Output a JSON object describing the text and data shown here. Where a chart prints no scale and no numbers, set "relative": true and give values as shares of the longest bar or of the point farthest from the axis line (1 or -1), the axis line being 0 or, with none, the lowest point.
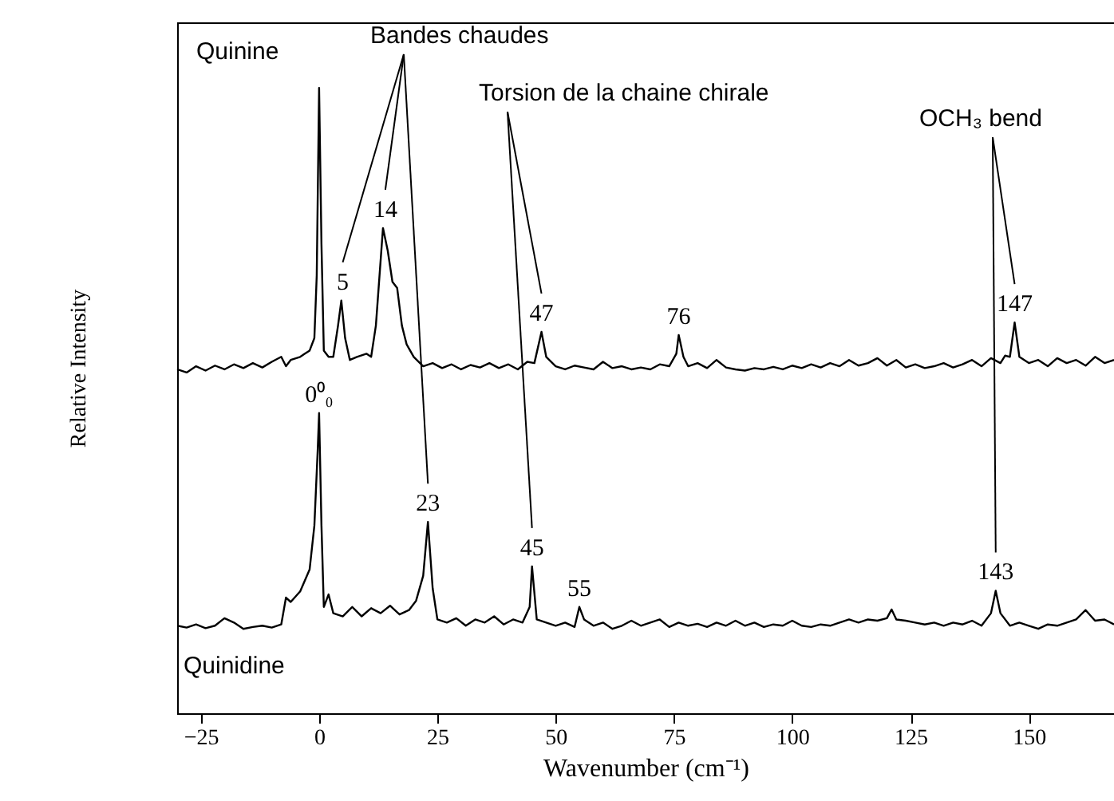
{
  "chart_data": {
    "type": "line",
    "relative": true,
    "xlabel": "Wavenumber (cm⁻¹)",
    "ylabel": "Relative Intensity",
    "xlim": [
      -30,
      168
    ],
    "xticks": [
      -25,
      0,
      25,
      50,
      75,
      100,
      125,
      150
    ],
    "line_style": "solid",
    "marker": "none",
    "series": [
      {
        "name": "Quinine",
        "color": "#000000",
        "x": [
          -30,
          -28,
          -26,
          -24,
          -22,
          -20,
          -18,
          -16,
          -14,
          -12,
          -10,
          -8,
          -7,
          -6,
          -4,
          -3,
          -2,
          -1,
          -0.5,
          0,
          0.5,
          1,
          2,
          3,
          4,
          4.7,
          5.5,
          6.5,
          8,
          10,
          11,
          12,
          13.5,
          14.5,
          15.5,
          16.5,
          17.5,
          18.5,
          20,
          22,
          24,
          26,
          28,
          30,
          32,
          34,
          36,
          38,
          40,
          42,
          44,
          45.5,
          47,
          48,
          50,
          52,
          54,
          56,
          58,
          60,
          62,
          64,
          66,
          68,
          70,
          72,
          74,
          75.5,
          76,
          77,
          78,
          80,
          82,
          84,
          86,
          88,
          90,
          92,
          94,
          96,
          98,
          100,
          102,
          104,
          106,
          108,
          110,
          112,
          114,
          116,
          118,
          120,
          122,
          124,
          126,
          128,
          130,
          132,
          134,
          136,
          138,
          140,
          142,
          144,
          145,
          146,
          147,
          148,
          150,
          152,
          154,
          156,
          158,
          160,
          162,
          164,
          166,
          168
        ],
        "values": [
          0.55,
          0.545,
          0.555,
          0.548,
          0.556,
          0.55,
          0.558,
          0.552,
          0.56,
          0.553,
          0.562,
          0.57,
          0.555,
          0.565,
          0.57,
          0.575,
          0.58,
          0.6,
          0.7,
          1.0,
          0.75,
          0.58,
          0.57,
          0.57,
          0.62,
          0.66,
          0.6,
          0.565,
          0.57,
          0.575,
          0.57,
          0.62,
          0.776,
          0.74,
          0.69,
          0.68,
          0.62,
          0.59,
          0.57,
          0.555,
          0.56,
          0.552,
          0.558,
          0.55,
          0.557,
          0.553,
          0.56,
          0.552,
          0.558,
          0.55,
          0.562,
          0.56,
          0.61,
          0.57,
          0.555,
          0.55,
          0.556,
          0.553,
          0.55,
          0.562,
          0.552,
          0.555,
          0.55,
          0.553,
          0.55,
          0.558,
          0.555,
          0.575,
          0.605,
          0.57,
          0.555,
          0.56,
          0.552,
          0.565,
          0.553,
          0.55,
          0.548,
          0.552,
          0.55,
          0.554,
          0.55,
          0.556,
          0.552,
          0.558,
          0.553,
          0.56,
          0.555,
          0.565,
          0.556,
          0.56,
          0.568,
          0.556,
          0.565,
          0.553,
          0.558,
          0.552,
          0.555,
          0.56,
          0.553,
          0.558,
          0.565,
          0.555,
          0.568,
          0.56,
          0.572,
          0.57,
          0.625,
          0.57,
          0.56,
          0.565,
          0.555,
          0.568,
          0.56,
          0.565,
          0.556,
          0.57,
          0.56,
          0.565
        ]
      },
      {
        "name": "Quinidine",
        "color": "#000000",
        "x": [
          -30,
          -28,
          -26,
          -24,
          -22,
          -20,
          -18,
          -16,
          -14,
          -12,
          -10,
          -8,
          -7,
          -6,
          -4,
          -2,
          -1,
          -0.3,
          0,
          0.5,
          1,
          2,
          3,
          5,
          7,
          9,
          11,
          13,
          15,
          17,
          19,
          20.5,
          22,
          23,
          24,
          25,
          27,
          29,
          31,
          33,
          35,
          37,
          39,
          41,
          43,
          44.5,
          45,
          46,
          48,
          50,
          52,
          54,
          55,
          56,
          58,
          60,
          62,
          64,
          66,
          68,
          70,
          72,
          74,
          76,
          78,
          80,
          82,
          84,
          86,
          88,
          90,
          92,
          94,
          96,
          98,
          100,
          102,
          104,
          106,
          108,
          110,
          112,
          114,
          116,
          118,
          120,
          121,
          122,
          124,
          126,
          128,
          130,
          132,
          134,
          136,
          138,
          140,
          142,
          143,
          144,
          146,
          148,
          150,
          152,
          154,
          156,
          158,
          160,
          162,
          164,
          166,
          168
        ],
        "values": [
          0.14,
          0.137,
          0.142,
          0.136,
          0.14,
          0.152,
          0.145,
          0.135,
          0.138,
          0.14,
          0.137,
          0.142,
          0.185,
          0.178,
          0.195,
          0.23,
          0.3,
          0.42,
          0.48,
          0.3,
          0.17,
          0.19,
          0.16,
          0.155,
          0.17,
          0.155,
          0.168,
          0.16,
          0.172,
          0.158,
          0.165,
          0.18,
          0.22,
          0.306,
          0.2,
          0.15,
          0.145,
          0.152,
          0.14,
          0.15,
          0.145,
          0.155,
          0.142,
          0.15,
          0.145,
          0.17,
          0.235,
          0.15,
          0.145,
          0.14,
          0.145,
          0.138,
          0.17,
          0.15,
          0.14,
          0.145,
          0.135,
          0.14,
          0.148,
          0.14,
          0.145,
          0.15,
          0.138,
          0.145,
          0.14,
          0.143,
          0.138,
          0.145,
          0.14,
          0.148,
          0.14,
          0.145,
          0.138,
          0.142,
          0.14,
          0.148,
          0.14,
          0.138,
          0.142,
          0.14,
          0.145,
          0.15,
          0.145,
          0.15,
          0.148,
          0.152,
          0.166,
          0.15,
          0.148,
          0.145,
          0.142,
          0.145,
          0.14,
          0.145,
          0.142,
          0.148,
          0.14,
          0.16,
          0.196,
          0.16,
          0.14,
          0.145,
          0.14,
          0.135,
          0.142,
          0.14,
          0.145,
          0.15,
          0.165,
          0.148,
          0.15,
          0.142
        ]
      }
    ],
    "annotations": [
      {
        "text": "5",
        "x": 5,
        "y": 0.66
      },
      {
        "text": "14",
        "x": 14,
        "y": 0.776
      },
      {
        "text": "47",
        "x": 47,
        "y": 0.61
      },
      {
        "text": "76",
        "x": 76,
        "y": 0.605
      },
      {
        "text": "147",
        "x": 147,
        "y": 0.625
      },
      {
        "text": "0⁰₀",
        "x": 0,
        "y": 0.48
      },
      {
        "text": "23",
        "x": 23,
        "y": 0.306
      },
      {
        "text": "45",
        "x": 45,
        "y": 0.235
      },
      {
        "text": "55",
        "x": 55,
        "y": 0.17
      },
      {
        "text": "143",
        "x": 143,
        "y": 0.196
      },
      "Bandes chaudes",
      "Torsion de la chaine chirale",
      "OCH₃ bend"
    ]
  }
}
